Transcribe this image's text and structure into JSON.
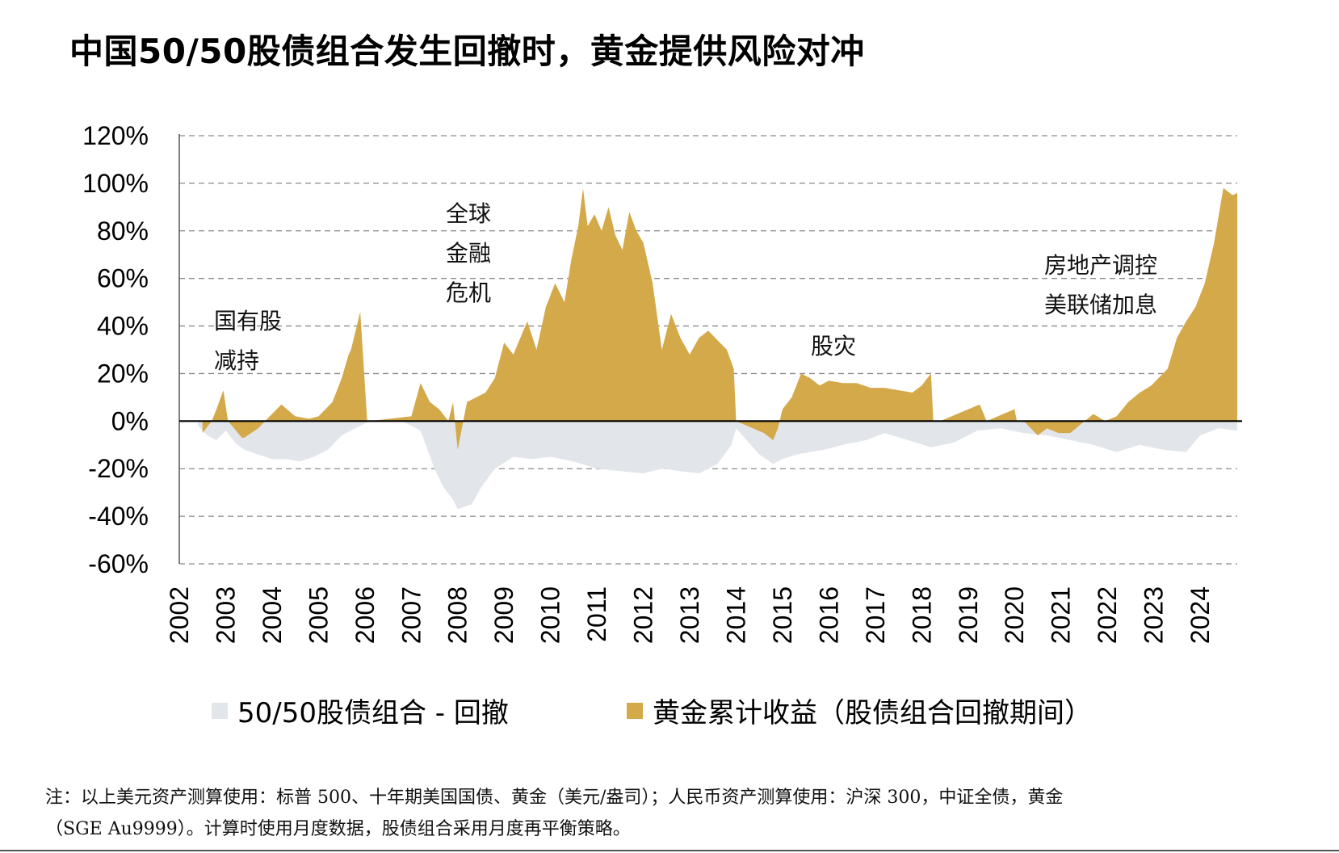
{
  "title": "中国50/50股债组合发生回撤时，黄金提供风险对冲",
  "colors": {
    "gold": "#D4A94A",
    "drawdown": "#E2E5EA",
    "grid": "#8a8a8a",
    "axis": "#000000"
  },
  "annotations": [
    {
      "lines": [
        "国有股",
        "减持"
      ]
    },
    {
      "lines": [
        "全球",
        "金融",
        "危机"
      ]
    },
    {
      "lines": [
        "股灾"
      ]
    },
    {
      "lines": [
        "房地产调控",
        "美联储加息"
      ]
    }
  ],
  "legend": {
    "drawdown": "50/50股债组合 - 回撤",
    "gold": "黄金累计收益（股债组合回撤期间）"
  },
  "note": {
    "line1": "注：以上美元资产测算使用：标普 500、十年期美国国债、黄金（美元/盎司）；人民币资产测算使用：沪深 300，中证全债，黄金",
    "line2": "（SGE Au9999）。计算时使用月度数据，股债组合采用月度再平衡策略。"
  },
  "chart_data": {
    "type": "area",
    "title": "中国50/50股债组合发生回撤时，黄金提供风险对冲",
    "xlabel": "",
    "ylabel": "",
    "x_ticks": [
      "2002",
      "2003",
      "2004",
      "2005",
      "2006",
      "2007",
      "2008",
      "2009",
      "2010",
      "2011",
      "2012",
      "2013",
      "2014",
      "2015",
      "2016",
      "2017",
      "2018",
      "2019",
      "2020",
      "2021",
      "2022",
      "2023",
      "2024"
    ],
    "y_ticks": [
      "120%",
      "100%",
      "80%",
      "60%",
      "40%",
      "20%",
      "0%",
      "-20%",
      "-40%",
      "-60%"
    ],
    "xlim": [
      2002.0,
      2024.8
    ],
    "ylim": [
      -60,
      120
    ],
    "grid": "horizontal dashed",
    "legend_position": "bottom",
    "series": [
      {
        "name": "50/50股债组合 - 回撤",
        "x": [
          2002.4,
          2002.6,
          2002.8,
          2003.0,
          2003.2,
          2003.4,
          2003.7,
          2004.0,
          2004.3,
          2004.6,
          2004.9,
          2005.2,
          2005.5,
          2005.9,
          2006.1,
          2006.8,
          2007.2,
          2007.5,
          2007.7,
          2007.9,
          2008.0,
          2008.3,
          2008.5,
          2008.8,
          2009.2,
          2009.6,
          2010.0,
          2010.5,
          2011.0,
          2011.5,
          2012.0,
          2012.4,
          2012.8,
          2013.2,
          2013.6,
          2013.9,
          2014.0,
          2014.5,
          2014.8,
          2015.0,
          2015.3,
          2015.6,
          2015.9,
          2016.3,
          2016.8,
          2017.2,
          2017.7,
          2018.2,
          2018.7,
          2019.2,
          2019.7,
          2020.2,
          2020.7,
          2021.2,
          2021.7,
          2022.2,
          2022.7,
          2023.2,
          2023.7,
          2024.0,
          2024.4,
          2024.8
        ],
        "values": [
          -2,
          -6,
          -8,
          -4,
          -9,
          -12,
          -14,
          -16,
          -16,
          -17,
          -15,
          -12,
          -6,
          -2,
          0,
          0,
          -4,
          -20,
          -28,
          -33,
          -37,
          -35,
          -28,
          -20,
          -15,
          -16,
          -15,
          -17,
          -20,
          -21,
          -22,
          -20,
          -21,
          -22,
          -18,
          -10,
          -3,
          -14,
          -18,
          -16,
          -14,
          -13,
          -12,
          -10,
          -8,
          -5,
          -8,
          -11,
          -9,
          -4,
          -3,
          -5,
          -6,
          -8,
          -10,
          -13,
          -10,
          -12,
          -13,
          -6,
          -3,
          -4
        ]
      },
      {
        "name": "黄金累计收益（股债组合回撤期间）",
        "x": [
          2002.5,
          2002.7,
          2002.8,
          2002.95,
          2003.05,
          2003.35,
          2003.4,
          2003.7,
          2003.95,
          2004.2,
          2004.5,
          2004.8,
          2005.0,
          2005.3,
          2005.5,
          2005.65,
          2005.7,
          2005.9,
          2006.05,
          2006.1,
          2007.0,
          2007.2,
          2007.4,
          2007.6,
          2007.8,
          2007.9,
          2008.0,
          2008.2,
          2008.4,
          2008.6,
          2008.8,
          2009.0,
          2009.2,
          2009.35,
          2009.5,
          2009.7,
          2009.9,
          2010.1,
          2010.3,
          2010.45,
          2010.6,
          2010.7,
          2010.8,
          2010.95,
          2011.1,
          2011.25,
          2011.4,
          2011.55,
          2011.7,
          2011.85,
          2012.0,
          2012.2,
          2012.4,
          2012.6,
          2012.8,
          2013.0,
          2013.2,
          2013.4,
          2013.6,
          2013.8,
          2013.95,
          2014.0,
          2014.6,
          2014.8,
          2014.9,
          2015.0,
          2015.2,
          2015.4,
          2015.6,
          2015.8,
          2016.0,
          2016.3,
          2016.6,
          2016.9,
          2017.2,
          2017.5,
          2017.8,
          2018.0,
          2018.2,
          2018.25,
          2018.4,
          2019.25,
          2019.4,
          2020.0,
          2020.05,
          2020.2,
          2020.5,
          2020.7,
          2020.95,
          2021.2,
          2021.45,
          2021.7,
          2021.95,
          2022.2,
          2022.45,
          2022.7,
          2022.95,
          2023.1,
          2023.3,
          2023.5,
          2023.7,
          2023.9,
          2024.1,
          2024.3,
          2024.5,
          2024.7,
          2024.8
        ],
        "values": [
          -5,
          0,
          5,
          13,
          0,
          -7,
          -7,
          -3,
          2,
          7,
          2,
          1,
          2,
          8,
          18,
          28,
          30,
          46,
          0,
          0,
          2,
          16,
          8,
          5,
          0,
          8,
          -12,
          8,
          10,
          12,
          18,
          33,
          28,
          35,
          42,
          30,
          48,
          58,
          50,
          68,
          82,
          98,
          82,
          87,
          80,
          90,
          78,
          72,
          88,
          80,
          75,
          58,
          30,
          45,
          35,
          28,
          35,
          38,
          34,
          30,
          22,
          0,
          -5,
          -8,
          -3,
          5,
          10,
          20,
          18,
          15,
          17,
          16,
          16,
          14,
          14,
          13,
          12,
          15,
          20,
          0,
          0,
          7,
          0,
          5,
          0,
          0,
          -6,
          -3,
          -5,
          -5,
          -1,
          3,
          0,
          2,
          8,
          12,
          15,
          18,
          22,
          35,
          42,
          48,
          58,
          75,
          98,
          95,
          96
        ]
      }
    ]
  }
}
